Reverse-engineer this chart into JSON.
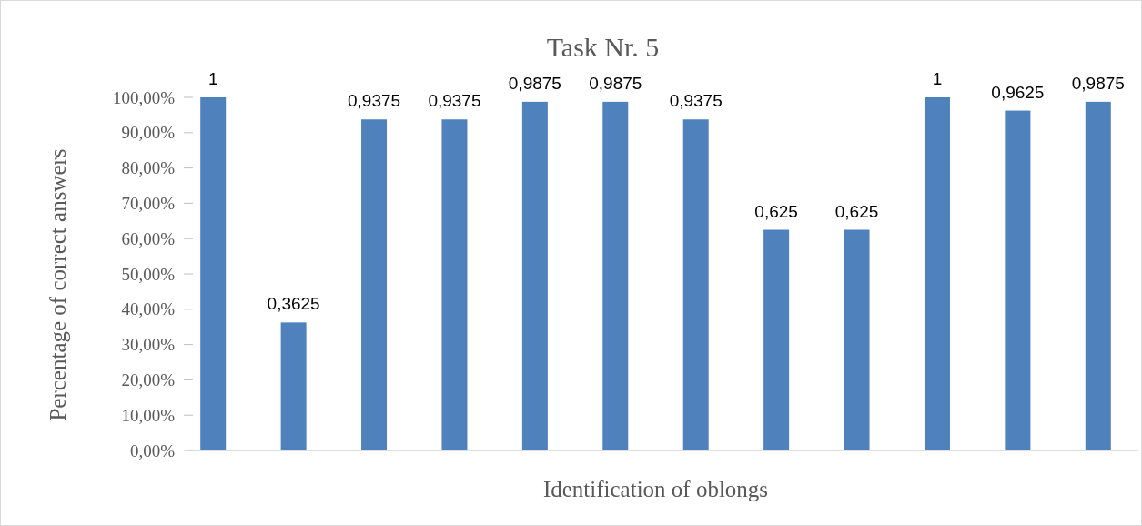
{
  "chart_data": {
    "type": "bar",
    "title": "Task Nr. 5",
    "xlabel": "Identification of oblongs",
    "ylabel": "Percentage of correct answers",
    "categories": [
      null,
      null,
      null,
      null,
      null,
      null,
      null,
      null,
      null,
      null,
      null,
      null
    ],
    "values": [
      1,
      0.3625,
      0.9375,
      0.9375,
      0.9875,
      0.9875,
      0.9375,
      0.625,
      0.625,
      1,
      0.9625,
      0.9875
    ],
    "value_labels": [
      "1",
      "0,3625",
      "0,9375",
      "0,9375",
      "0,9875",
      "0,9875",
      "0,9375",
      "0,625",
      "0,625",
      "1",
      "0,9625",
      "0,9875"
    ],
    "color": "#4f81bd",
    "ylim": [
      0,
      1
    ],
    "yticks": [
      {
        "value": 0,
        "label": "0,00%"
      },
      {
        "value": 0.1,
        "label": "10,00%"
      },
      {
        "value": 0.2,
        "label": "20,00%"
      },
      {
        "value": 0.3,
        "label": "30,00%"
      },
      {
        "value": 0.4,
        "label": "40,00%"
      },
      {
        "value": 0.5,
        "label": "50,00%"
      },
      {
        "value": 0.6,
        "label": "60,00%"
      },
      {
        "value": 0.7,
        "label": "70,00%"
      },
      {
        "value": 0.8,
        "label": "80,00%"
      },
      {
        "value": 0.9,
        "label": "90,00%"
      },
      {
        "value": 1,
        "label": "100,00%"
      }
    ],
    "grid": false
  }
}
